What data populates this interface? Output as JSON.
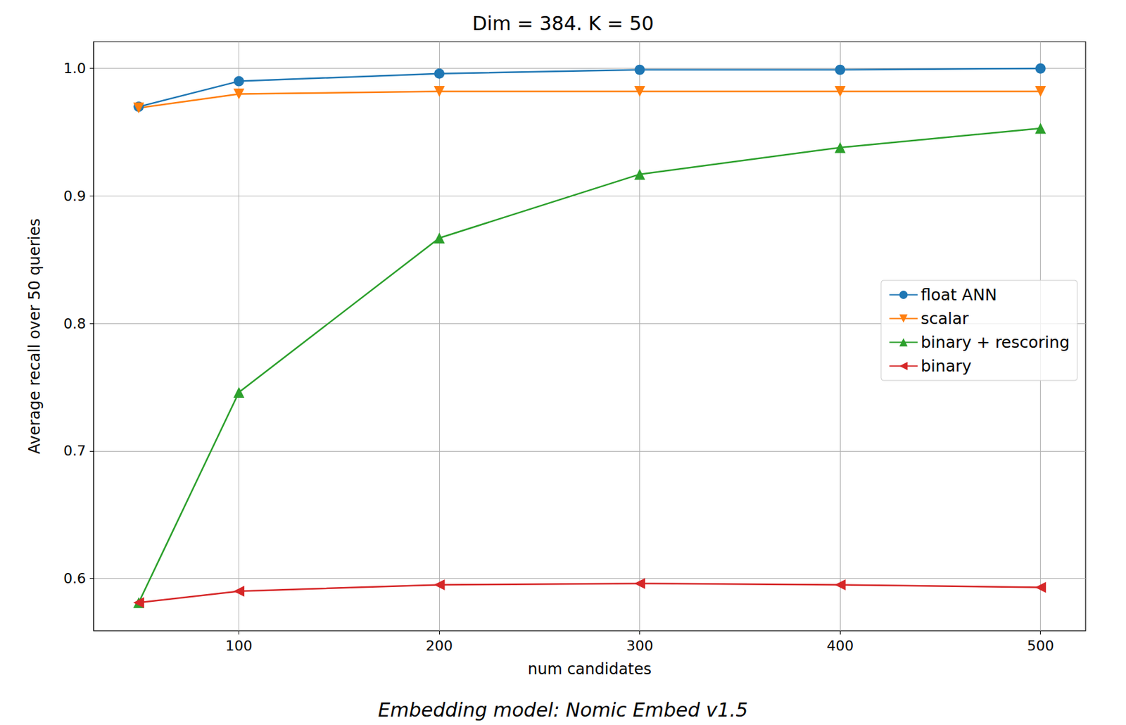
{
  "chart_data": {
    "type": "line",
    "title": "Dim = 384. K = 50",
    "x_label": "num candidates",
    "y_label": "Average recall over 50 queries",
    "caption": "Embedding model: Nomic Embed v1.5",
    "x": [
      50,
      100,
      200,
      300,
      400,
      500
    ],
    "series": [
      {
        "name": "float ANN",
        "color": "#1f77b4",
        "marker": "circle",
        "values": [
          0.97,
          0.99,
          0.996,
          0.999,
          0.999,
          1.0
        ]
      },
      {
        "name": "scalar",
        "color": "#ff7f0e",
        "marker": "triangle_down",
        "values": [
          0.969,
          0.98,
          0.982,
          0.982,
          0.982,
          0.982
        ]
      },
      {
        "name": "binary + rescoring",
        "color": "#2ca02c",
        "marker": "triangle_up",
        "values": [
          0.581,
          0.746,
          0.867,
          0.917,
          0.938,
          0.953
        ]
      },
      {
        "name": "binary",
        "color": "#d62728",
        "marker": "triangle_left",
        "values": [
          0.581,
          0.59,
          0.595,
          0.596,
          0.595,
          0.593
        ]
      }
    ],
    "xlim": [
      27.5,
      522.5
    ],
    "xticks": [
      100,
      200,
      300,
      400,
      500
    ],
    "ylim": [
      0.559,
      1.021
    ],
    "yticks": [
      0.6,
      0.7,
      0.8,
      0.9,
      {
        "value": 1,
        "label": "1.0"
      }
    ],
    "grid": true,
    "legend": "right"
  }
}
